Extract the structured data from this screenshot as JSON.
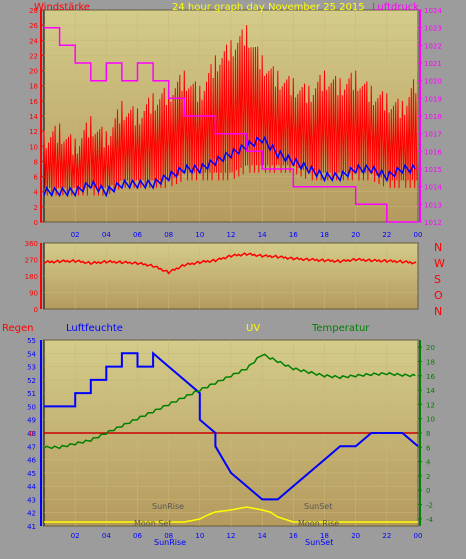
{
  "chart_data": [
    {
      "type": "line",
      "title": "24 hour graph day   November 25 2015",
      "left_label": "Windstärke",
      "right_label": "Luftdruck",
      "x_ticks": [
        "02",
        "04",
        "06",
        "08",
        "10",
        "12",
        "14",
        "16",
        "18",
        "20",
        "22",
        "00"
      ],
      "y_left_ticks": [
        "0",
        "2",
        "4",
        "6",
        "8",
        "10",
        "12",
        "14",
        "16",
        "18",
        "20",
        "22",
        "24",
        "26",
        "28"
      ],
      "y_right_ticks": [
        "1012",
        "1013",
        "1014",
        "1015",
        "1016",
        "1017",
        "1018",
        "1019",
        "1020",
        "1021",
        "1022",
        "1023",
        "1024"
      ],
      "ylim_left": [
        0,
        28
      ],
      "ylim_right": [
        1012,
        1024
      ],
      "series": [
        {
          "name": "Windstärke",
          "color": "#ff0000",
          "axis": "left",
          "x": [
            0,
            1,
            2,
            3,
            4,
            5,
            6,
            7,
            8,
            9,
            10,
            11,
            12,
            13,
            14,
            15,
            16,
            17,
            18,
            19,
            20,
            21,
            22,
            23,
            24
          ],
          "values": [
            8,
            9,
            8,
            9,
            8,
            10,
            9,
            10,
            11,
            12,
            12,
            13,
            14,
            15,
            14,
            13,
            13,
            12,
            13,
            12,
            12,
            11,
            11,
            10,
            11
          ],
          "min": [
            3,
            3,
            3,
            3,
            3,
            4,
            4,
            4,
            4,
            5,
            5,
            5,
            5,
            6,
            6,
            6,
            6,
            5,
            5,
            5,
            5,
            5,
            4,
            4,
            4
          ],
          "max": [
            12,
            13,
            11,
            14,
            12,
            16,
            15,
            17,
            18,
            20,
            18,
            22,
            24,
            26,
            22,
            20,
            19,
            18,
            20,
            19,
            20,
            18,
            17,
            16,
            20
          ]
        },
        {
          "name": "Wind average",
          "color": "#0000ff",
          "axis": "left",
          "x": [
            0,
            1,
            2,
            3,
            4,
            5,
            6,
            7,
            8,
            9,
            10,
            11,
            12,
            13,
            14,
            15,
            16,
            17,
            18,
            19,
            20,
            21,
            22,
            23,
            24
          ],
          "values": [
            4,
            4,
            4,
            5,
            4,
            5,
            5,
            5,
            6,
            7,
            7,
            8,
            9,
            10,
            11,
            9,
            8,
            7,
            6,
            6,
            7,
            7,
            6,
            7,
            7
          ]
        },
        {
          "name": "Luftdruck",
          "color": "#ff00ff",
          "axis": "right",
          "x": [
            0,
            1,
            1,
            2,
            2,
            3,
            3,
            4,
            4,
            5,
            5,
            6,
            6,
            7,
            7,
            8,
            8,
            9,
            9,
            10,
            10,
            11,
            11,
            12,
            12,
            13,
            13,
            14,
            14,
            15,
            15,
            16,
            16,
            17,
            17,
            18,
            18,
            19,
            19,
            20,
            20,
            21,
            21,
            22,
            22,
            23,
            23,
            24
          ],
          "values": [
            1023,
            1023,
            1022,
            1022,
            1021,
            1021,
            1020,
            1020,
            1021,
            1021,
            1020,
            1020,
            1021,
            1021,
            1020,
            1020,
            1019,
            1019,
            1018,
            1018,
            1018,
            1018,
            1017,
            1017,
            1017,
            1017,
            1016,
            1016,
            1015,
            1015,
            1015,
            1015,
            1014,
            1014,
            1014,
            1014,
            1014,
            1014,
            1014,
            1014,
            1013,
            1013,
            1013,
            1013,
            1012,
            1012,
            1012,
            1012
          ]
        }
      ]
    },
    {
      "type": "line",
      "title": "",
      "y_ticks": [
        "0",
        "90",
        "180",
        "270",
        "360"
      ],
      "ylim": [
        0,
        360
      ],
      "direction_labels": [
        "N",
        "W",
        "S",
        "O",
        "N"
      ],
      "series": [
        {
          "name": "Windrichtung",
          "color": "#ff0000",
          "x": [
            0,
            1,
            2,
            3,
            4,
            5,
            6,
            7,
            8,
            9,
            10,
            11,
            12,
            13,
            14,
            15,
            16,
            17,
            18,
            19,
            20,
            21,
            22,
            23,
            24
          ],
          "values": [
            255,
            260,
            262,
            250,
            258,
            255,
            250,
            235,
            200,
            240,
            255,
            265,
            290,
            300,
            290,
            285,
            275,
            270,
            265,
            260,
            270,
            265,
            262,
            258,
            250
          ]
        }
      ]
    },
    {
      "type": "line",
      "labels": {
        "regen": "Regen",
        "feuchte": "Luftfeuchte",
        "uv": "UV",
        "temperatur": "Temperatur"
      },
      "annotations": [
        "SunRise",
        "SunSet",
        "Moon Set",
        "Moon Rise",
        "SunRise",
        "SunSet"
      ],
      "x_ticks": [
        "02",
        "04",
        "06",
        "08",
        "10",
        "12",
        "14",
        "16",
        "18",
        "20",
        "22",
        "00"
      ],
      "y_left_ticks": [
        "41",
        "42",
        "43",
        "44",
        "45",
        "46",
        "47",
        "48",
        "49",
        "50",
        "51",
        "52",
        "53",
        "54",
        "55"
      ],
      "y_right_ticks": [
        "-4",
        "-2",
        "0",
        "2",
        "4",
        "6",
        "8",
        "10",
        "12",
        "14",
        "16",
        "18",
        "20"
      ],
      "rain_axis_ticks": [
        "0"
      ],
      "ylim_left": [
        41,
        55
      ],
      "ylim_right": [
        -5,
        21
      ],
      "series": [
        {
          "name": "Luftfeuchte",
          "color": "#0000ff",
          "axis": "left",
          "x": [
            0,
            2,
            2,
            3,
            3,
            4,
            4,
            5,
            5,
            6,
            6,
            7,
            7,
            8,
            9,
            10,
            10,
            11,
            11,
            12,
            13,
            14,
            15,
            16,
            17,
            18,
            19,
            20,
            21,
            22,
            23,
            24
          ],
          "values": [
            50,
            50,
            51,
            51,
            52,
            52,
            53,
            53,
            54,
            54,
            53,
            53,
            54,
            53,
            52,
            51,
            49,
            48,
            47,
            45,
            44,
            43,
            43,
            44,
            45,
            46,
            47,
            47,
            48,
            48,
            48,
            47
          ]
        },
        {
          "name": "Temperatur",
          "color": "#008000",
          "axis": "right",
          "x": [
            0,
            1,
            2,
            3,
            4,
            5,
            6,
            7,
            8,
            9,
            10,
            11,
            12,
            13,
            14,
            15,
            16,
            17,
            18,
            19,
            20,
            21,
            22,
            23,
            24
          ],
          "values": [
            6,
            6,
            6.5,
            7,
            8,
            9,
            10,
            11,
            12,
            13,
            14,
            15,
            16,
            17,
            19,
            18,
            17,
            16.5,
            16,
            15.8,
            16,
            16.2,
            16.3,
            16.1,
            16
          ]
        },
        {
          "name": "UV",
          "color": "#ffff00",
          "axis": "uv",
          "x": [
            0,
            9,
            10,
            10.5,
            11,
            12,
            13,
            14,
            14.5,
            15,
            16,
            24
          ],
          "values": [
            0,
            0,
            0.3,
            0.7,
            1,
            1.2,
            1.5,
            1.2,
            1,
            0.5,
            0,
            0
          ]
        },
        {
          "name": "Regen",
          "color": "#ff0000",
          "axis": "rain",
          "x": [
            0,
            24
          ],
          "values": [
            0,
            0
          ]
        }
      ]
    }
  ]
}
